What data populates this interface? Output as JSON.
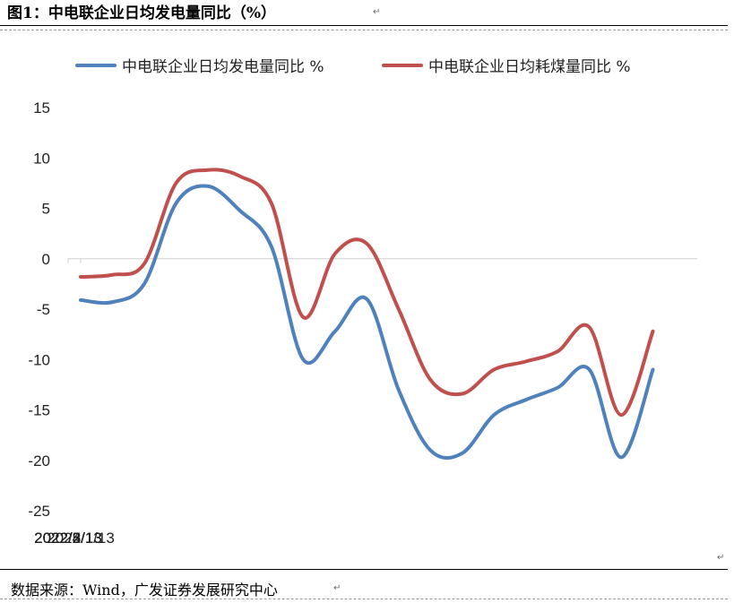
{
  "figure": {
    "title": "图1：中电联企业日均发电量同比（%）",
    "source": "数据来源：Wind，广发证券发展研究中心",
    "para_mark": "↵"
  },
  "chart_data": {
    "type": "line",
    "title": "",
    "xlabel": "",
    "ylabel": "",
    "ylim": [
      -25,
      15
    ],
    "yticks": [
      15,
      10,
      5,
      0,
      -5,
      -10,
      -15,
      -20,
      -25
    ],
    "xticks": [
      "2022/1/13",
      "2022/2/13",
      "2022/3/13",
      "2022/4/13",
      "2022/5/13"
    ],
    "grid": false,
    "legend_position": "top",
    "x": [
      "2022/1/13",
      "2022/1/20",
      "2022/1/27",
      "2022/2/3",
      "2022/2/10",
      "2022/2/17",
      "2022/2/24",
      "2022/3/3",
      "2022/3/10",
      "2022/3/17",
      "2022/3/24",
      "2022/3/31",
      "2022/4/7",
      "2022/4/14",
      "2022/4/21",
      "2022/4/28",
      "2022/5/5",
      "2022/5/12",
      "2022/5/19",
      "2022/5/26"
    ],
    "series": [
      {
        "name": "中电联企业日均发电量同比 %",
        "color": "#4F81BD",
        "values": [
          -4.1,
          -4.3,
          -2.5,
          5.5,
          7.2,
          4.8,
          1.2,
          -10.0,
          -7.2,
          -4.0,
          -13.0,
          -19.0,
          -19.3,
          -15.5,
          -14.0,
          -12.8,
          -11.0,
          -19.7,
          -11.0,
          null
        ]
      },
      {
        "name": "中电联企业日均耗煤量同比 %",
        "color": "#C0504D",
        "values": [
          -1.8,
          -1.6,
          -0.5,
          7.5,
          8.8,
          8.2,
          5.5,
          -5.8,
          0.5,
          1.5,
          -5.0,
          -12.0,
          -13.4,
          -11.0,
          -10.2,
          -9.2,
          -6.8,
          -15.5,
          -7.2,
          null
        ]
      }
    ]
  }
}
